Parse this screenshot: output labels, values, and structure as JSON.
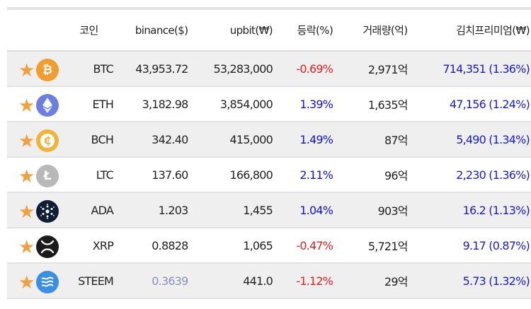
{
  "header": {
    "coin": "코인",
    "binance": "binance($)",
    "upbit": "upbit(₩)",
    "change": "등락(%)",
    "volume": "거래량(억)",
    "kimchi": "김치프리미엄(₩)"
  },
  "colors": {
    "star": "#f0a040",
    "negative": "#e02020",
    "positive": "#1010e0",
    "row_alt": "#efefef"
  },
  "rows": [
    {
      "symbol": "BTC",
      "icon": "bitcoin-icon",
      "binance": "43,953.72",
      "upbit": "53,283,000",
      "change": "-0.69%",
      "volume": "2,971억",
      "kimchi": "714,351 (1.36%)"
    },
    {
      "symbol": "ETH",
      "icon": "ethereum-icon",
      "binance": "3,182.98",
      "upbit": "3,854,000",
      "change": "1.39%",
      "volume": "1,635억",
      "kimchi": "47,156 (1.24%)"
    },
    {
      "symbol": "BCH",
      "icon": "bitcoin-cash-icon",
      "binance": "342.40",
      "upbit": "415,000",
      "change": "1.49%",
      "volume": "87억",
      "kimchi": "5,490 (1.34%)"
    },
    {
      "symbol": "LTC",
      "icon": "litecoin-icon",
      "binance": "137.60",
      "upbit": "166,800",
      "change": "2.11%",
      "volume": "96억",
      "kimchi": "2,230 (1.36%)"
    },
    {
      "symbol": "ADA",
      "icon": "cardano-icon",
      "binance": "1.203",
      "upbit": "1,455",
      "change": "1.04%",
      "volume": "903억",
      "kimchi": "16.2 (1.13%)"
    },
    {
      "symbol": "XRP",
      "icon": "ripple-icon",
      "binance": "0.8828",
      "upbit": "1,065",
      "change": "-0.47%",
      "volume": "5,721억",
      "kimchi": "9.17 (0.87%)"
    },
    {
      "symbol": "STEEM",
      "icon": "steem-icon",
      "binance": "0.3639",
      "upbit": "441.0",
      "change": "-1.12%",
      "volume": "29억",
      "kimchi": "5.73 (1.32%)"
    }
  ]
}
